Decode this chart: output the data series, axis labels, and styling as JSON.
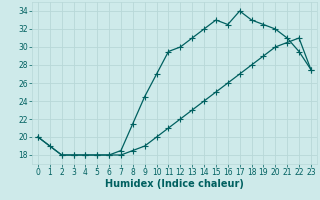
{
  "title": "",
  "xlabel": "Humidex (Indice chaleur)",
  "bg_color": "#ceeaea",
  "line_color": "#006060",
  "grid_color": "#b8d8d8",
  "xlim": [
    -0.5,
    23.5
  ],
  "ylim": [
    17.0,
    35.0
  ],
  "yticks": [
    18,
    20,
    22,
    24,
    26,
    28,
    30,
    32,
    34
  ],
  "xticks": [
    0,
    1,
    2,
    3,
    4,
    5,
    6,
    7,
    8,
    9,
    10,
    11,
    12,
    13,
    14,
    15,
    16,
    17,
    18,
    19,
    20,
    21,
    22,
    23
  ],
  "line1_x": [
    0,
    1,
    2,
    3,
    4,
    5,
    6,
    7,
    8,
    9,
    10,
    11,
    12,
    13,
    14,
    15,
    16,
    17,
    18,
    19,
    20,
    21,
    22,
    23
  ],
  "line1_y": [
    20,
    19,
    18,
    18,
    18,
    18,
    18,
    18.5,
    21.5,
    24.5,
    27.0,
    29.5,
    30.0,
    31.0,
    32.0,
    33.0,
    32.5,
    34.0,
    33.0,
    32.5,
    32.0,
    31.0,
    29.5,
    27.5
  ],
  "line2_x": [
    0,
    2,
    3,
    4,
    5,
    6,
    7,
    8,
    9,
    10,
    11,
    12,
    13,
    14,
    15,
    16,
    17,
    18,
    19,
    20,
    21,
    22,
    23
  ],
  "line2_y": [
    20,
    18,
    18,
    18,
    18,
    18,
    18.0,
    18.5,
    19.0,
    20.0,
    21.0,
    22.0,
    23.0,
    24.0,
    25.0,
    26.0,
    27.0,
    28.0,
    29.0,
    30.0,
    30.5,
    31.0,
    27.5
  ],
  "tick_fontsize": 5.5,
  "xlabel_fontsize": 7.0,
  "marker_size": 2.5,
  "linewidth": 0.9
}
